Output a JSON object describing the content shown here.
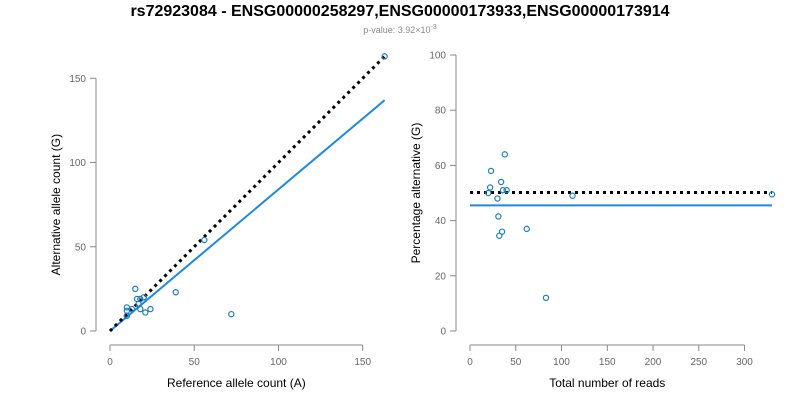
{
  "title": "rs72923084 - ENSG00000258297,ENSG00000173933,ENSG00000173914",
  "subtitle": {
    "prefix": "p-value: 3.92×10",
    "exponent": "-3"
  },
  "colors": {
    "points": "#1a7fbf",
    "fit": "#1e88e5",
    "reference": "#000000",
    "axis": "#888888",
    "tick_text": "#666666"
  },
  "chart_data": [
    {
      "type": "scatter",
      "name": "left-panel",
      "xlabel": "Reference allele count (A)",
      "ylabel": "Alternative allele count (G)",
      "xlim": [
        0,
        165
      ],
      "ylim": [
        0,
        165
      ],
      "xticks": [
        0,
        50,
        100,
        150
      ],
      "yticks": [
        0,
        50,
        100,
        150
      ],
      "grid": false,
      "points": [
        {
          "x": 10,
          "y": 9
        },
        {
          "x": 10,
          "y": 12
        },
        {
          "x": 10,
          "y": 14
        },
        {
          "x": 13,
          "y": 13
        },
        {
          "x": 15,
          "y": 25
        },
        {
          "x": 16,
          "y": 19
        },
        {
          "x": 17,
          "y": 16
        },
        {
          "x": 18,
          "y": 13
        },
        {
          "x": 18,
          "y": 19
        },
        {
          "x": 20,
          "y": 20
        },
        {
          "x": 21,
          "y": 11
        },
        {
          "x": 24,
          "y": 13
        },
        {
          "x": 39,
          "y": 23
        },
        {
          "x": 56,
          "y": 54
        },
        {
          "x": 72,
          "y": 10
        },
        {
          "x": 163,
          "y": 163
        }
      ],
      "lines": [
        {
          "role": "fit",
          "x": [
            0,
            163
          ],
          "y": [
            0,
            137
          ]
        },
        {
          "role": "reference",
          "x": [
            0,
            163
          ],
          "y": [
            0,
            163
          ]
        }
      ]
    },
    {
      "type": "scatter",
      "name": "right-panel",
      "xlabel": "Total number of reads",
      "ylabel": "Percentage alternative (G)",
      "xlim": [
        0,
        330
      ],
      "ylim": [
        0,
        100
      ],
      "xticks": [
        0,
        50,
        100,
        150,
        200,
        250,
        300
      ],
      "yticks": [
        0,
        20,
        40,
        60,
        80,
        100
      ],
      "grid": false,
      "points": [
        {
          "x": 20,
          "y": 50
        },
        {
          "x": 22,
          "y": 52
        },
        {
          "x": 23,
          "y": 58
        },
        {
          "x": 30,
          "y": 48
        },
        {
          "x": 31,
          "y": 41.5
        },
        {
          "x": 32,
          "y": 34.5
        },
        {
          "x": 34,
          "y": 54
        },
        {
          "x": 35,
          "y": 36
        },
        {
          "x": 36,
          "y": 51
        },
        {
          "x": 38,
          "y": 64
        },
        {
          "x": 40,
          "y": 51
        },
        {
          "x": 62,
          "y": 37
        },
        {
          "x": 83,
          "y": 12
        },
        {
          "x": 112,
          "y": 49
        },
        {
          "x": 330,
          "y": 49.5
        }
      ],
      "lines": [
        {
          "role": "fit",
          "x": [
            0,
            330
          ],
          "y": [
            45.5,
            45.5
          ]
        },
        {
          "role": "reference",
          "x": [
            0,
            330
          ],
          "y": [
            50.2,
            50.2
          ]
        }
      ]
    }
  ]
}
